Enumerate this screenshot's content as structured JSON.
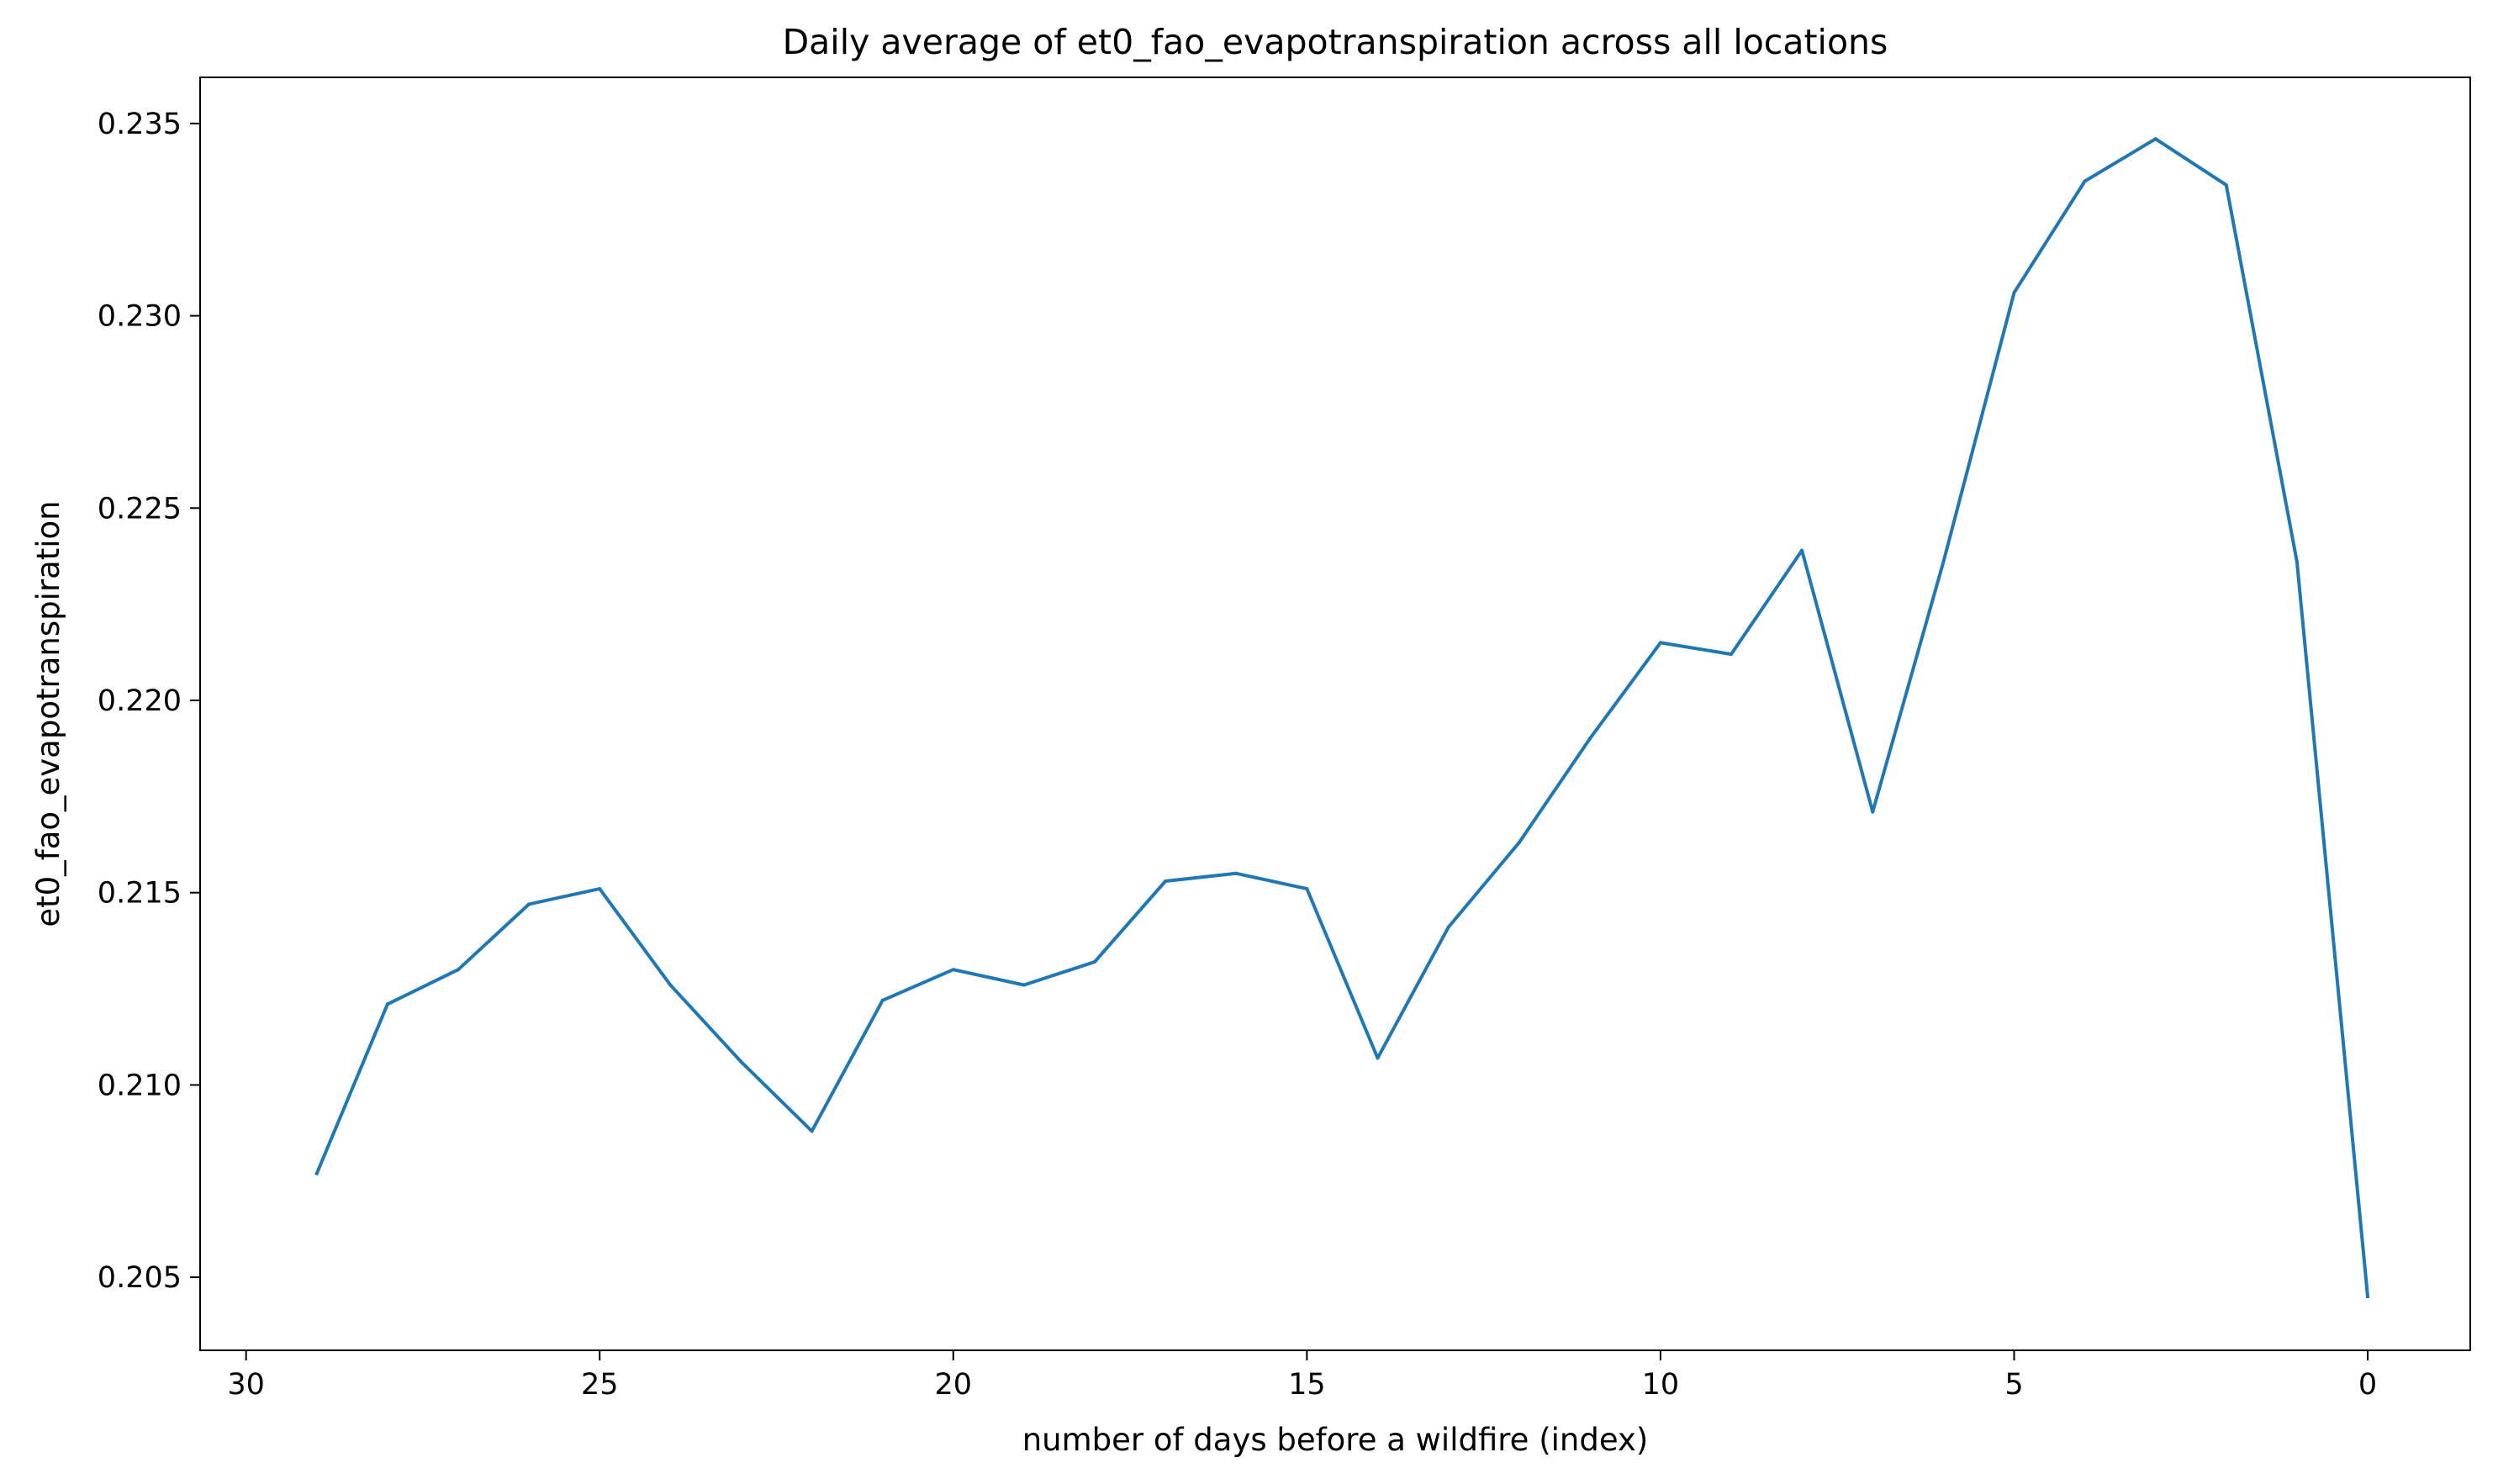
{
  "chart_data": {
    "type": "line",
    "title": "Daily average of et0_fao_evapotranspiration across all locations",
    "xlabel": "number of days before a wildfire (index)",
    "ylabel": "et0_fao_evapotranspiration",
    "xlim": [
      30.65,
      -1.45
    ],
    "ylim": [
      0.2031,
      0.2362
    ],
    "x_axis_inverted": true,
    "grid": false,
    "xticks": [
      30,
      25,
      20,
      15,
      10,
      5,
      0
    ],
    "xtick_labels": [
      "30",
      "25",
      "20",
      "15",
      "10",
      "5",
      "0"
    ],
    "yticks": [
      0.205,
      0.21,
      0.215,
      0.22,
      0.225,
      0.23,
      0.235
    ],
    "ytick_labels": [
      "0.205",
      "0.210",
      "0.215",
      "0.220",
      "0.225",
      "0.230",
      "0.235"
    ],
    "series": [
      {
        "color": "#1f77b4",
        "x": [
          29,
          28,
          27,
          26,
          25,
          24,
          23,
          22,
          21,
          20,
          19,
          18,
          17,
          16,
          15,
          14,
          13,
          12,
          11,
          10,
          9,
          8,
          7,
          6,
          5,
          4,
          3,
          2,
          1,
          0
        ],
        "y": [
          0.2077,
          0.2121,
          0.213,
          0.2147,
          0.2151,
          0.2126,
          0.2106,
          0.2088,
          0.2122,
          0.213,
          0.2126,
          0.2132,
          0.2153,
          0.2155,
          0.2151,
          0.2107,
          0.2141,
          0.2163,
          0.219,
          0.2215,
          0.2212,
          0.2239,
          0.2171,
          0.2236,
          0.2306,
          0.2335,
          0.2346,
          0.2334,
          0.2236,
          0.2045
        ]
      }
    ]
  }
}
